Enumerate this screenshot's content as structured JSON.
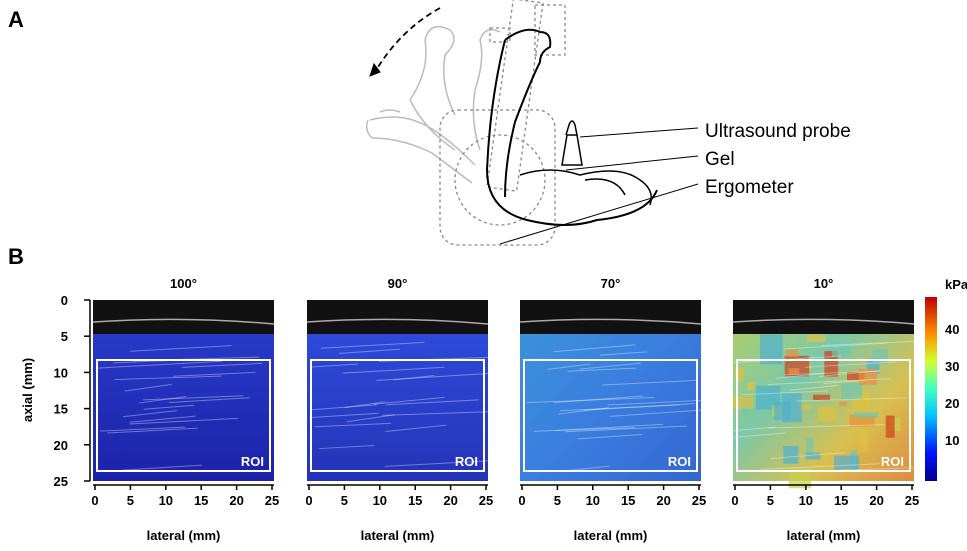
{
  "panel_a": {
    "label": "A",
    "annotations": [
      "Ultrasound probe",
      "Gel",
      "Ergometer"
    ]
  },
  "panel_b": {
    "label": "B",
    "y_label": "axial (mm)",
    "yticks": [
      "0",
      "5",
      "10",
      "15",
      "20",
      "25"
    ],
    "x_label": "lateral (mm)",
    "xticks": [
      "0",
      "5",
      "10",
      "15",
      "20",
      "25"
    ],
    "images": [
      {
        "title": "100°",
        "roi": "ROI"
      },
      {
        "title": "90°",
        "roi": "ROI"
      },
      {
        "title": "70°",
        "roi": "ROI"
      },
      {
        "title": "10°",
        "roi": "ROI"
      }
    ],
    "colorbar": {
      "unit": "kPa",
      "ticks": [
        "10",
        "20",
        "30",
        "40"
      ]
    }
  }
}
